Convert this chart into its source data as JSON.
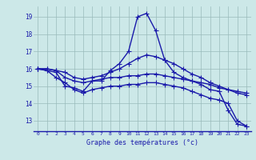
{
  "xlabel": "Graphe des températures (°c)",
  "bg_color": "#cce8e8",
  "grid_color": "#99bbbb",
  "line_color": "#1a1aaa",
  "marker": "+",
  "markersize": 4,
  "linewidth": 1.0,
  "x_ticks": [
    0,
    1,
    2,
    3,
    4,
    5,
    6,
    7,
    8,
    9,
    10,
    11,
    12,
    13,
    14,
    15,
    16,
    17,
    18,
    19,
    20,
    21,
    22,
    23
  ],
  "y_ticks": [
    13,
    14,
    15,
    16,
    17,
    18,
    19
  ],
  "ylim": [
    12.4,
    19.6
  ],
  "xlim": [
    -0.5,
    23.5
  ],
  "series": [
    [
      16.0,
      15.9,
      15.8,
      15.0,
      14.9,
      14.7,
      15.3,
      15.3,
      15.9,
      16.3,
      17.0,
      19.0,
      19.2,
      18.2,
      16.5,
      15.8,
      15.5,
      15.3,
      15.1,
      14.8,
      14.7,
      13.6,
      12.8,
      12.7
    ],
    [
      16.0,
      16.0,
      15.9,
      15.8,
      15.5,
      15.4,
      15.5,
      15.6,
      15.8,
      16.0,
      16.3,
      16.6,
      16.8,
      16.7,
      16.5,
      16.3,
      16.0,
      15.7,
      15.5,
      15.2,
      15.0,
      14.8,
      14.7,
      14.6
    ],
    [
      16.0,
      16.0,
      15.9,
      15.5,
      15.3,
      15.2,
      15.3,
      15.4,
      15.5,
      15.5,
      15.6,
      15.6,
      15.7,
      15.7,
      15.6,
      15.5,
      15.4,
      15.3,
      15.2,
      15.1,
      14.9,
      14.8,
      14.6,
      14.5
    ],
    [
      16.0,
      15.9,
      15.5,
      15.2,
      14.8,
      14.6,
      14.8,
      14.9,
      15.0,
      15.0,
      15.1,
      15.1,
      15.2,
      15.2,
      15.1,
      15.0,
      14.9,
      14.7,
      14.5,
      14.3,
      14.2,
      14.0,
      13.0,
      12.7
    ]
  ]
}
